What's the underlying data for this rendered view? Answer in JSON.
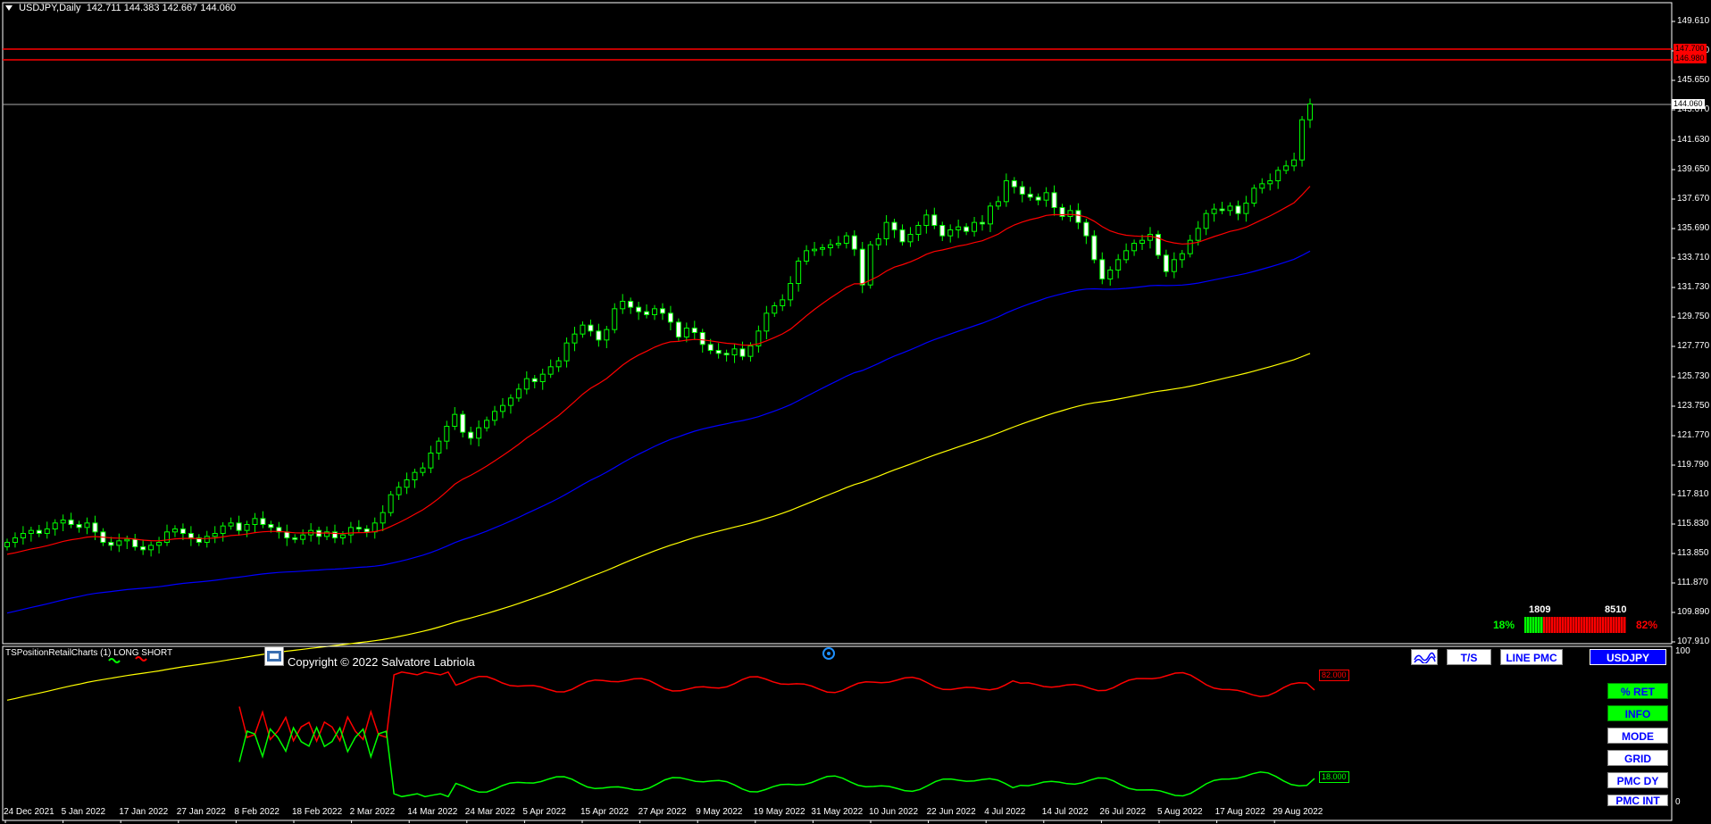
{
  "header": {
    "symbol_timeframe": "USDJPY,Daily",
    "ohlc": "142.711 144.383 142.667 144.060"
  },
  "price_axis": {
    "ticks": [
      "149.610",
      "147.630",
      "145.650",
      "143.670",
      "141.630",
      "139.650",
      "137.670",
      "135.690",
      "133.710",
      "131.730",
      "129.750",
      "127.770",
      "125.730",
      "123.750",
      "121.770",
      "119.790",
      "117.810",
      "115.830",
      "113.850",
      "111.870",
      "109.890",
      "107.910"
    ],
    "current_price": "144.060",
    "red_levels": [
      "147.700",
      "146.980"
    ]
  },
  "time_axis": {
    "labels": [
      "24 Dec 2021",
      "5 Jan 2022",
      "17 Jan 2022",
      "27 Jan 2022",
      "8 Feb 2022",
      "18 Feb 2022",
      "2 Mar 2022",
      "14 Mar 2022",
      "24 Mar 2022",
      "5 Apr 2022",
      "15 Apr 2022",
      "27 Apr 2022",
      "9 May 2022",
      "19 May 2022",
      "31 May 2022",
      "10 Jun 2022",
      "22 Jun 2022",
      "4 Jul 2022",
      "14 Jul 2022",
      "26 Jul 2022",
      "5 Aug 2022",
      "17 Aug 2022",
      "29 Aug 2022"
    ]
  },
  "chart_data": {
    "type": "candlestick",
    "symbol": "USDJPY",
    "timeframe": "Daily",
    "ylim": [
      107.91,
      150.6
    ],
    "closes": [
      114.6,
      114.9,
      115.2,
      115.4,
      115.2,
      115.5,
      115.9,
      116.1,
      115.8,
      115.6,
      115.9,
      115.3,
      114.6,
      114.4,
      114.7,
      114.8,
      114.3,
      114.1,
      114.4,
      114.6,
      115.3,
      115.5,
      115.2,
      114.9,
      114.6,
      115.0,
      115.2,
      115.7,
      115.9,
      115.4,
      115.8,
      116.2,
      115.8,
      115.6,
      115.3,
      114.9,
      114.8,
      115.1,
      115.4,
      115.0,
      115.3,
      114.9,
      115.1,
      115.6,
      115.5,
      115.3,
      115.9,
      116.6,
      117.8,
      118.3,
      118.8,
      119.3,
      119.6,
      120.6,
      121.4,
      122.4,
      123.2,
      122.0,
      121.6,
      122.3,
      122.8,
      123.4,
      123.8,
      124.3,
      124.9,
      125.6,
      125.4,
      125.9,
      126.4,
      126.8,
      128.0,
      128.6,
      129.2,
      128.8,
      128.2,
      128.9,
      130.3,
      130.8,
      130.4,
      130.1,
      129.9,
      130.3,
      130.0,
      129.4,
      128.4,
      129.0,
      128.7,
      127.9,
      127.5,
      127.3,
      127.2,
      127.6,
      127.1,
      127.8,
      128.8,
      130.0,
      130.5,
      130.9,
      132.0,
      133.5,
      134.2,
      134.3,
      134.4,
      134.6,
      134.7,
      135.2,
      134.3,
      131.9,
      134.6,
      135.0,
      136.1,
      135.6,
      134.8,
      135.3,
      135.9,
      136.6,
      135.9,
      135.2,
      135.6,
      135.8,
      135.5,
      136.1,
      136.0,
      137.2,
      137.5,
      138.9,
      138.5,
      138.0,
      137.8,
      137.6,
      138.1,
      137.1,
      136.5,
      136.9,
      136.1,
      135.2,
      133.6,
      132.3,
      132.9,
      133.6,
      134.2,
      134.7,
      134.9,
      135.3,
      133.9,
      132.8,
      133.6,
      134.0,
      134.9,
      135.7,
      136.7,
      137.0,
      136.9,
      137.2,
      136.7,
      137.4,
      138.4,
      138.7,
      138.9,
      139.6,
      139.9,
      140.3,
      143.0,
      144.06
    ],
    "moving_averages": [
      {
        "color": "#ff0000",
        "period": "short"
      },
      {
        "color": "#0000ff",
        "period": "medium"
      },
      {
        "color": "#ffff00",
        "period": "long"
      }
    ]
  },
  "subwindow": {
    "title": "TSPositionRetailCharts (1) LONG SHORT",
    "copyright": "Copyright © 2022 Salvatore Labriola",
    "scale_top": "100",
    "scale_bottom": "0",
    "short_value": "82.000",
    "long_value": "18.000",
    "short_color": "#ff0000",
    "long_color": "#00ff00"
  },
  "gauge": {
    "long_count": "1809",
    "short_count": "8510",
    "long_pct": "18%",
    "short_pct": "82%"
  },
  "toolbar": {
    "wave_icon": "wave-icon",
    "ts_label": "T/S",
    "line_pmc_label": "LINE PMC",
    "symbol_label": "USDJPY"
  },
  "side_buttons": {
    "ret_label": "% RET",
    "info_label": "INFO",
    "mode_label": "MODE",
    "grid_label": "GRID",
    "pmc_dy_label": "PMC DY",
    "pmc_int_label": "PMC INT"
  }
}
